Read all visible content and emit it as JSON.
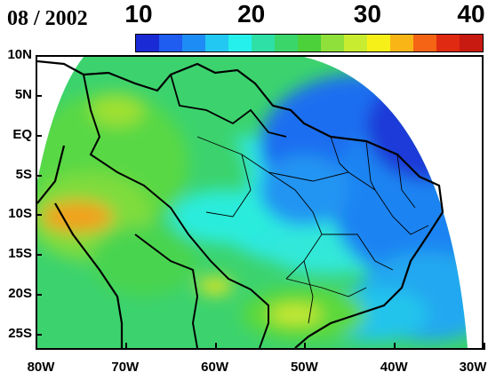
{
  "date": "08 / 2002",
  "colorbar": {
    "ticks": [
      {
        "label": "10",
        "value": 10
      },
      {
        "label": "20",
        "value": 20
      },
      {
        "label": "30",
        "value": 30
      },
      {
        "label": "40",
        "value": 40
      }
    ],
    "range": [
      10,
      40
    ],
    "colors": [
      "#1a2bd6",
      "#1f5cf0",
      "#1e8cf5",
      "#22c8f2",
      "#26f0ec",
      "#2ee0a6",
      "#3ad66a",
      "#4cd13a",
      "#8fe03a",
      "#c8ec30",
      "#f7f018",
      "#f9b416",
      "#f46414",
      "#e02a12",
      "#c81a10"
    ]
  },
  "map": {
    "lat_labels": [
      "10N",
      "5N",
      "EQ",
      "5S",
      "10S",
      "15S",
      "20S",
      "25S"
    ],
    "lon_labels": [
      "80W",
      "70W",
      "60W",
      "50W",
      "40W",
      "30W"
    ],
    "lat_range": [
      -27,
      10
    ],
    "lon_range": [
      -80,
      -30
    ]
  }
}
